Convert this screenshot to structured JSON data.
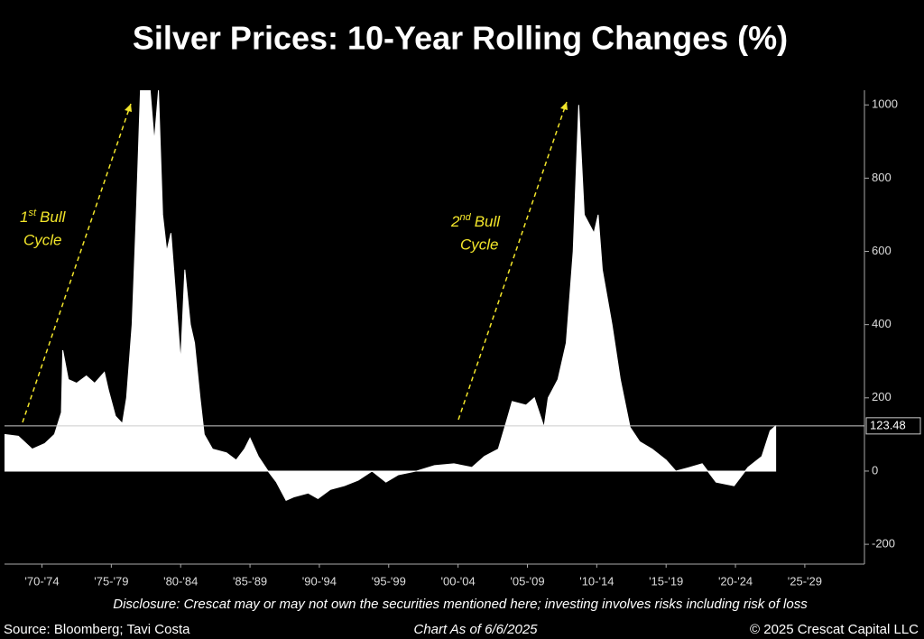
{
  "chart_data": {
    "type": "area",
    "title": "Silver Prices: 10-Year Rolling Changes (%)",
    "x": [
      1969.8,
      1970.8,
      1971.8,
      1972.7,
      1973.4,
      1973.9,
      1974.0,
      1974.4,
      1975.0,
      1975.7,
      1976.3,
      1977.0,
      1977.3,
      1977.8,
      1978.3,
      1978.6,
      1979.0,
      1979.3,
      1979.6,
      1980.3,
      1980.6,
      1980.9,
      1981.2,
      1981.5,
      1981.8,
      1982.2,
      1982.5,
      1982.8,
      1983.2,
      1983.5,
      1983.9,
      1984.2,
      1984.8,
      1985.8,
      1986.5,
      1987.1,
      1987.5,
      1988.1,
      1988.8,
      1989.4,
      1990.1,
      1990.7,
      1991.7,
      1992.4,
      1993.3,
      1994.3,
      1995.3,
      1996.3,
      1997.3,
      1998.2,
      1999.5,
      2000.8,
      2002.2,
      2003.5,
      2004.4,
      2005.4,
      2006.1,
      2006.4,
      2007.4,
      2008.0,
      2008.7,
      2009.0,
      2009.7,
      2010.3,
      2010.8,
      2011.2,
      2011.6,
      2012.3,
      2012.6,
      2012.9,
      2013.6,
      2014.2,
      2014.9,
      2015.6,
      2016.5,
      2017.5,
      2018.2,
      2019.2,
      2020.1,
      2021.1,
      2022.4,
      2023.4,
      2024.4,
      2025.0,
      2025.4
    ],
    "series": [
      {
        "color": "#ffffff",
        "values": [
          100,
          95,
          60,
          75,
          100,
          160,
          330,
          250,
          240,
          260,
          240,
          270,
          220,
          150,
          130,
          200,
          400,
          700,
          1040,
          1040,
          900,
          1040,
          700,
          600,
          650,
          450,
          300,
          550,
          400,
          350,
          200,
          100,
          60,
          50,
          30,
          60,
          90,
          40,
          0,
          -30,
          -80,
          -70,
          -60,
          -75,
          -50,
          -40,
          -25,
          0,
          -30,
          -10,
          0,
          15,
          20,
          10,
          40,
          60,
          150,
          190,
          180,
          200,
          120,
          200,
          250,
          350,
          600,
          1000,
          700,
          650,
          700,
          550,
          400,
          250,
          120,
          80,
          60,
          30,
          0,
          10,
          20,
          -30,
          -40,
          10,
          40,
          110,
          123.48
        ]
      }
    ],
    "xlim": [
      1969.8,
      2031.8
    ],
    "xticks": [
      {
        "value": 1972.5,
        "label": "'70-'74"
      },
      {
        "value": 1977.5,
        "label": "'75-'79"
      },
      {
        "value": 1982.5,
        "label": "'80-'84"
      },
      {
        "value": 1987.5,
        "label": "'85-'89"
      },
      {
        "value": 1992.5,
        "label": "'90-'94"
      },
      {
        "value": 1997.5,
        "label": "'95-'99"
      },
      {
        "value": 2002.5,
        "label": "'00-'04"
      },
      {
        "value": 2007.5,
        "label": "'05-'09"
      },
      {
        "value": 2012.5,
        "label": "'10-'14"
      },
      {
        "value": 2017.5,
        "label": "'15-'19"
      },
      {
        "value": 2022.5,
        "label": "'20-'24"
      },
      {
        "value": 2027.5,
        "label": "'25-'29"
      }
    ],
    "ylim": [
      -254,
      1040
    ],
    "yticks": [
      1000,
      800,
      600,
      400,
      200,
      0,
      -200
    ],
    "reference_line": {
      "value": 123.48,
      "label": "123.48"
    },
    "annotations": [
      {
        "number": "1",
        "suffix": "st",
        "text": "Bull",
        "line2": "Cycle"
      },
      {
        "number": "2",
        "suffix": "nd",
        "text": "Bull",
        "line2": "Cycle"
      }
    ],
    "disclosure": "Disclosure: Crescat may or may not own the securities mentioned here; investing involves risks including risk of loss",
    "source": "Source: Bloomberg; Tavi Costa",
    "date_note": "Chart As of 6/6/2025",
    "copyright": "© 2025 Crescat Capital LLC"
  }
}
